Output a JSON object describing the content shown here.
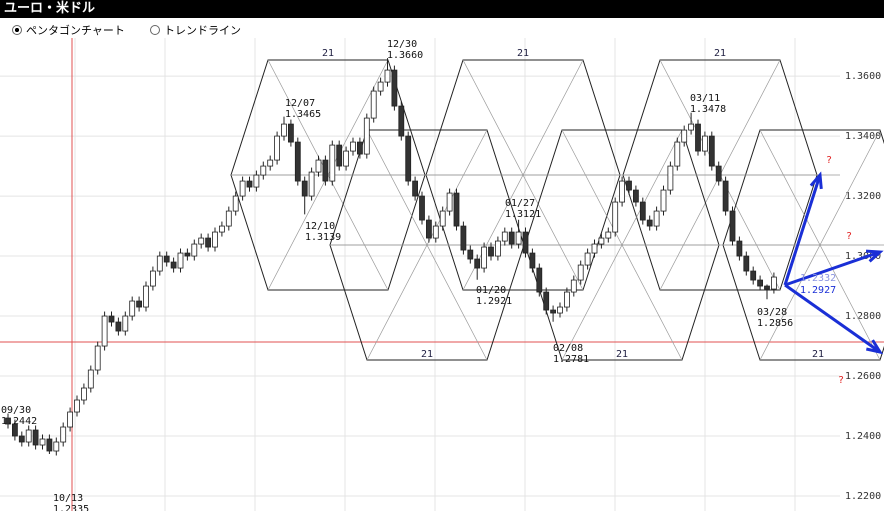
{
  "header": {
    "title": "ユーロ・米ドル",
    "options": [
      "ペンタゴンチャート",
      "トレンドライン"
    ]
  },
  "chart_data": {
    "type": "candlestick",
    "open": [
      1.246,
      1.244,
      1.24,
      1.238,
      1.242,
      1.237,
      1.239,
      1.235,
      1.238,
      1.243,
      1.248,
      1.252,
      1.256,
      1.262,
      1.27,
      1.28,
      1.278,
      1.275,
      1.28,
      1.285,
      1.283,
      1.29,
      1.295,
      1.3,
      1.298,
      1.296,
      1.301,
      1.3,
      1.304,
      1.306,
      1.303,
      1.308,
      1.31,
      1.315,
      1.32,
      1.325,
      1.323,
      1.327,
      1.33,
      1.332,
      1.34,
      1.344,
      1.338,
      1.325,
      1.32,
      1.328,
      1.332,
      1.325,
      1.337,
      1.33,
      1.335,
      1.338,
      1.334,
      1.346,
      1.355,
      1.358,
      1.362,
      1.35,
      1.34,
      1.325,
      1.32,
      1.312,
      1.306,
      1.31,
      1.315,
      1.321,
      1.31,
      1.302,
      1.299,
      1.296,
      1.303,
      1.3,
      1.305,
      1.308,
      1.304,
      1.308,
      1.301,
      1.296,
      1.288,
      1.282,
      1.281,
      1.283,
      1.288,
      1.292,
      1.297,
      1.301,
      1.304,
      1.306,
      1.308,
      1.318,
      1.325,
      1.322,
      1.318,
      1.312,
      1.31,
      1.315,
      1.322,
      1.33,
      1.338,
      1.342,
      1.344,
      1.335,
      1.34,
      1.33,
      1.325,
      1.315,
      1.305,
      1.3,
      1.295,
      1.292,
      1.29,
      1.289
    ],
    "high": [
      1.2475,
      1.2455,
      1.2415,
      1.2435,
      1.2435,
      1.2405,
      1.2405,
      1.2395,
      1.2445,
      1.2495,
      1.2535,
      1.2575,
      1.2635,
      1.2715,
      1.2815,
      1.2815,
      1.2795,
      1.2815,
      1.2865,
      1.2865,
      1.2915,
      1.2965,
      1.3015,
      1.3015,
      1.2995,
      1.3025,
      1.3025,
      1.3055,
      1.3075,
      1.3075,
      1.3095,
      1.3115,
      1.3165,
      1.3215,
      1.3265,
      1.3265,
      1.3285,
      1.3315,
      1.3335,
      1.3415,
      1.3465,
      1.3455,
      1.3395,
      1.3265,
      1.3295,
      1.3335,
      1.3335,
      1.3385,
      1.3385,
      1.3365,
      1.3395,
      1.3395,
      1.3475,
      1.3565,
      1.3595,
      1.366,
      1.3635,
      1.3515,
      1.3415,
      1.3265,
      1.3215,
      1.3135,
      1.3115,
      1.3165,
      1.3225,
      1.3225,
      1.3115,
      1.3035,
      1.3005,
      1.3045,
      1.3045,
      1.3065,
      1.3095,
      1.3095,
      1.3121,
      1.3095,
      1.3025,
      1.2975,
      1.2895,
      1.2835,
      1.2845,
      1.2895,
      1.2935,
      1.2985,
      1.3025,
      1.3055,
      1.3075,
      1.3095,
      1.3195,
      1.3265,
      1.3265,
      1.3235,
      1.3195,
      1.3135,
      1.3165,
      1.3235,
      1.3315,
      1.3395,
      1.3435,
      1.3478,
      1.3455,
      1.3415,
      1.3415,
      1.3315,
      1.3265,
      1.3165,
      1.3065,
      1.3015,
      1.2965,
      1.2935,
      1.2905,
      1.2945
    ],
    "low": [
      1.2425,
      1.2385,
      1.2365,
      1.2365,
      1.2355,
      1.2355,
      1.234,
      1.2335,
      1.2365,
      1.2415,
      1.2465,
      1.2505,
      1.2545,
      1.2605,
      1.2685,
      1.2765,
      1.2735,
      1.2735,
      1.2785,
      1.2815,
      1.2815,
      1.2885,
      1.2935,
      1.2965,
      1.2945,
      1.2945,
      1.2985,
      1.2985,
      1.3025,
      1.3015,
      1.3015,
      1.3065,
      1.3085,
      1.3135,
      1.3185,
      1.3215,
      1.3215,
      1.3255,
      1.3285,
      1.3305,
      1.3385,
      1.3365,
      1.3235,
      1.3139,
      1.3185,
      1.3265,
      1.3235,
      1.3235,
      1.3285,
      1.3285,
      1.3335,
      1.3325,
      1.3325,
      1.3445,
      1.3535,
      1.3565,
      1.3485,
      1.3385,
      1.3235,
      1.3185,
      1.3105,
      1.3045,
      1.3045,
      1.3085,
      1.3135,
      1.3085,
      1.3005,
      1.2975,
      1.2921,
      1.2945,
      1.2985,
      1.2985,
      1.3035,
      1.3025,
      1.3025,
      1.2995,
      1.2945,
      1.2865,
      1.2805,
      1.2781,
      1.2795,
      1.2815,
      1.2865,
      1.2905,
      1.2955,
      1.2995,
      1.3025,
      1.3045,
      1.3065,
      1.3165,
      1.3205,
      1.3165,
      1.3105,
      1.3085,
      1.3085,
      1.3135,
      1.3205,
      1.3285,
      1.3365,
      1.3405,
      1.3335,
      1.3335,
      1.3285,
      1.3235,
      1.3135,
      1.3035,
      1.2985,
      1.2935,
      1.2905,
      1.2885,
      1.2856,
      1.2875
    ],
    "close": [
      1.244,
      1.24,
      1.238,
      1.242,
      1.237,
      1.239,
      1.235,
      1.238,
      1.243,
      1.248,
      1.252,
      1.256,
      1.262,
      1.27,
      1.28,
      1.278,
      1.275,
      1.28,
      1.285,
      1.283,
      1.29,
      1.295,
      1.3,
      1.298,
      1.296,
      1.301,
      1.3,
      1.304,
      1.306,
      1.303,
      1.308,
      1.31,
      1.315,
      1.32,
      1.325,
      1.323,
      1.327,
      1.33,
      1.332,
      1.34,
      1.344,
      1.338,
      1.325,
      1.32,
      1.328,
      1.332,
      1.325,
      1.337,
      1.33,
      1.335,
      1.338,
      1.334,
      1.346,
      1.355,
      1.358,
      1.362,
      1.35,
      1.34,
      1.325,
      1.32,
      1.312,
      1.306,
      1.31,
      1.315,
      1.321,
      1.31,
      1.302,
      1.299,
      1.296,
      1.303,
      1.3,
      1.305,
      1.308,
      1.304,
      1.308,
      1.301,
      1.296,
      1.288,
      1.282,
      1.281,
      1.283,
      1.288,
      1.292,
      1.297,
      1.301,
      1.304,
      1.306,
      1.308,
      1.318,
      1.325,
      1.322,
      1.318,
      1.312,
      1.31,
      1.315,
      1.322,
      1.33,
      1.338,
      1.342,
      1.344,
      1.335,
      1.34,
      1.33,
      1.325,
      1.315,
      1.305,
      1.3,
      1.295,
      1.292,
      1.29,
      1.289,
      1.293
    ],
    "ylim": [
      1.215,
      1.3787
    ],
    "yticks": [
      {
        "value": 1.22,
        "label": "1.2200"
      },
      {
        "value": 1.24,
        "label": "1.2400"
      },
      {
        "value": 1.26,
        "label": "1.2600"
      },
      {
        "value": 1.28,
        "label": "1.2800"
      },
      {
        "value": 1.3,
        "label": "1.3000"
      },
      {
        "value": 1.32,
        "label": "1.3200"
      },
      {
        "value": 1.34,
        "label": "1.3400"
      },
      {
        "value": 1.36,
        "label": "1.3600"
      }
    ],
    "grid": true,
    "up_color": "#ffffff",
    "down_color": "#333333",
    "annotations": [
      {
        "date": "09/30",
        "price": "1.2442"
      },
      {
        "date": "10/13",
        "price": "1.2335"
      },
      {
        "date": "12/07",
        "price": "1.3465"
      },
      {
        "date": "12/10",
        "price": "1.3139"
      },
      {
        "date": "12/30",
        "price": "1.3660"
      },
      {
        "date": "01/20",
        "price": "1.2921"
      },
      {
        "date": "01/27",
        "price": "1.3121"
      },
      {
        "date": "02/08",
        "price": "1.2781"
      },
      {
        "date": "03/11",
        "price": "1.3478"
      },
      {
        "date": "03/28",
        "price": "1.2856"
      }
    ],
    "cycle_labels": [
      "21",
      "21",
      "21",
      "21",
      "21",
      "21"
    ],
    "arrow_labels": [
      "1.2332",
      "1.2927"
    ],
    "marks": [
      "?",
      "?",
      "?"
    ]
  }
}
